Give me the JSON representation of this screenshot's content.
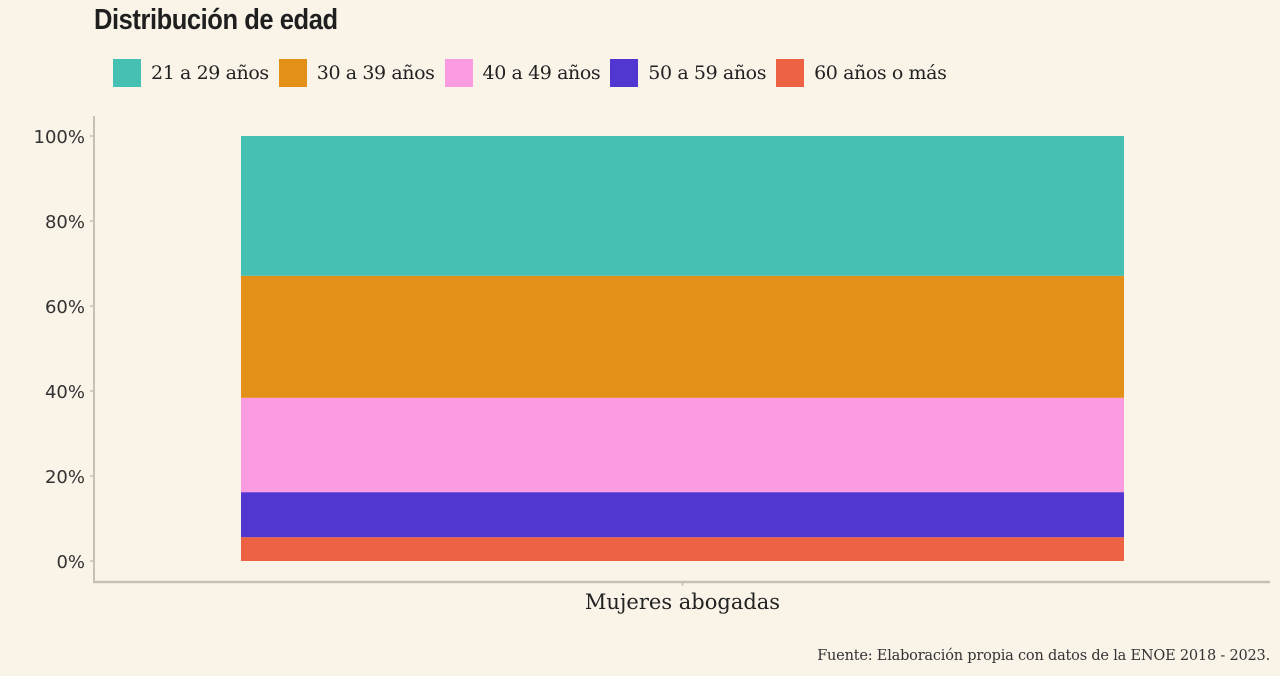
{
  "header": {
    "title": "Distribución de edad"
  },
  "footer": {
    "source": "Fuente: Elaboración propia con datos de la ENOE 2018 - 2023."
  },
  "chart_data": {
    "type": "bar",
    "stacked": true,
    "normalized": true,
    "title": "Distribución de edad",
    "xlabel": "",
    "ylabel": "",
    "categories": [
      "Mujeres abogadas"
    ],
    "ylim": [
      0,
      100
    ],
    "y_ticks": [
      0,
      20,
      40,
      60,
      80,
      100
    ],
    "y_tick_labels": [
      "0%",
      "20%",
      "40%",
      "60%",
      "80%",
      "100%"
    ],
    "grid": false,
    "legend_position": "top-left",
    "series": [
      {
        "name": "21 a 29 años",
        "color": "#47c0b4",
        "values": [
          32.9
        ]
      },
      {
        "name": "30 a 39 años",
        "color": "#e29018",
        "values": [
          28.7
        ]
      },
      {
        "name": "40 a 49 años",
        "color": "#fb9be1",
        "values": [
          22.2
        ]
      },
      {
        "name": "50 a 59 años",
        "color": "#5236d0",
        "values": [
          10.6
        ]
      },
      {
        "name": "60 años o más",
        "color": "#ec6243",
        "values": [
          5.6
        ]
      }
    ],
    "stack_order_bottom_to_top": [
      "60 años o más",
      "50 a 59 años",
      "40 a 49 años",
      "30 a 39 años",
      "21 a 29 años"
    ]
  }
}
